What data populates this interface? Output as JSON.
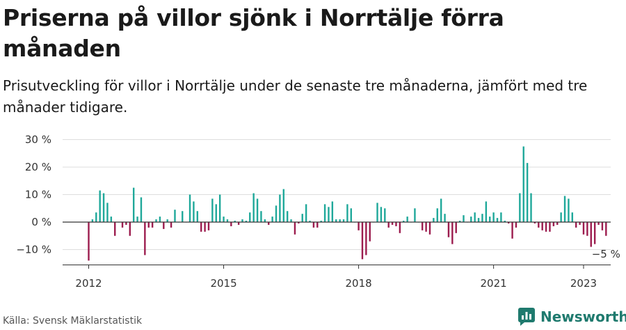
{
  "header": {
    "title": "Priserna på villor sjönk i Norrtälje förra månaden",
    "subtitle": "Prisutveckling för villor i Norrtälje under de senaste tre månaderna, jämfört med tre månader tidigare."
  },
  "footer": {
    "source": "Källa: Svensk Mäklarstatistik",
    "brand": "Newsworthy"
  },
  "colors": {
    "positive": "#1fa89a",
    "negative": "#9c1c4e",
    "grid": "#dddddd",
    "zero": "#333333",
    "brand": "#1f7a6e"
  },
  "chart_data": {
    "type": "bar",
    "start": "2012-01",
    "frequency": "monthly",
    "unit": "%",
    "ylim": [
      -15,
      32
    ],
    "yticks": [
      30,
      20,
      10,
      0,
      -10
    ],
    "ytick_labels": [
      "30 %",
      "20 %",
      "10 %",
      "0 %",
      "−10 %"
    ],
    "xticks": [
      "2012",
      "2015",
      "2018",
      "2021",
      "2023"
    ],
    "grid": true,
    "annotation": {
      "text": "−5 %",
      "value": -5
    },
    "values": [
      -14,
      1,
      3.5,
      11.5,
      10.5,
      7,
      2,
      -5,
      0,
      -2,
      -1,
      -5,
      12.5,
      2,
      9,
      -12,
      -2,
      -2,
      1,
      2,
      -2.5,
      1,
      -2,
      4.5,
      0,
      4,
      0,
      10,
      7.5,
      4,
      -3.5,
      -3.5,
      -3,
      8.5,
      6.5,
      10,
      2,
      1,
      -1.5,
      0.5,
      -1,
      1,
      0.5,
      3.5,
      10.5,
      8.5,
      4,
      1,
      -1,
      2,
      6,
      10,
      12,
      4,
      1,
      -4.5,
      -0.5,
      3,
      6.5,
      0.5,
      -2,
      -2,
      0.5,
      6.5,
      5.5,
      7.5,
      1,
      1,
      1,
      6.5,
      5,
      0,
      -3,
      -13.5,
      -12,
      -7,
      0,
      7,
      5.5,
      5,
      -2,
      -1,
      -1.5,
      -4,
      0.5,
      2,
      0,
      5,
      0,
      -3,
      -3.5,
      -4.5,
      1.5,
      5,
      8.5,
      3,
      -5.5,
      -8,
      -4,
      0.5,
      2.5,
      0,
      2,
      3.5,
      1.5,
      3,
      7.5,
      2,
      3.5,
      1.5,
      3.5,
      0.5,
      -0.5,
      -6,
      -2,
      10.5,
      27.5,
      21.5,
      10.5,
      -0.5,
      -2,
      -3,
      -3.5,
      -3.5,
      -1.5,
      -1,
      3.5,
      9.5,
      8.5,
      3.5,
      -2,
      -1,
      -4.5,
      -5,
      -9,
      -8,
      -1,
      -3,
      -5
    ]
  }
}
